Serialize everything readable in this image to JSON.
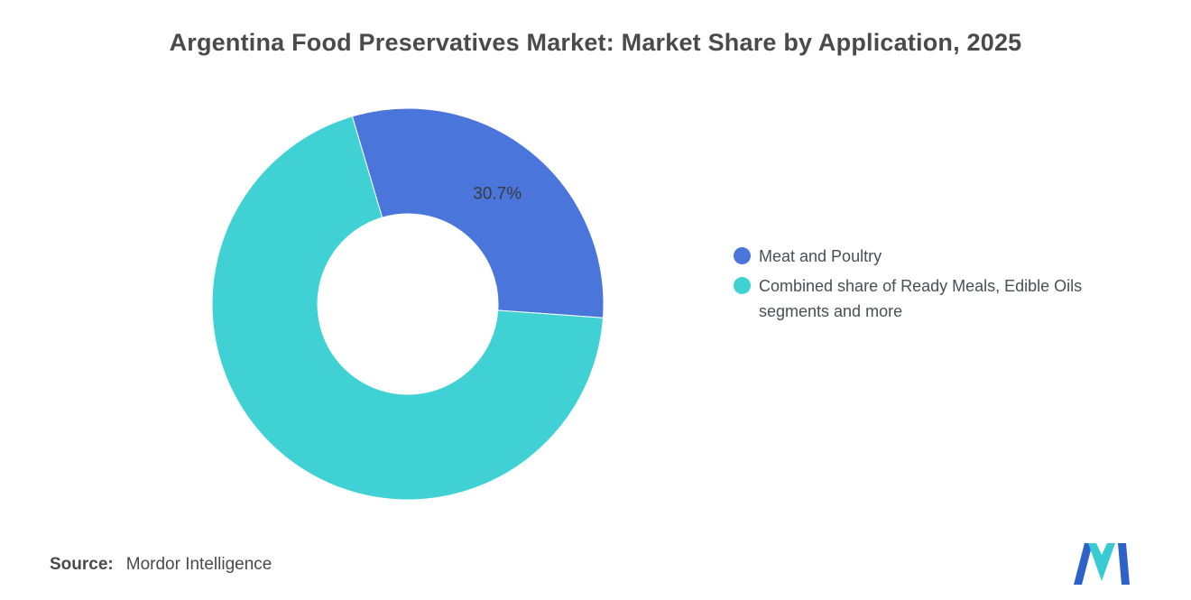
{
  "title": "Argentina Food Preservatives Market: Market Share by Application, 2025",
  "chart_data": {
    "type": "pie",
    "subtype": "donut",
    "title": "Argentina Food Preservatives Market: Market Share by Application, 2025",
    "start_angle": -16.5,
    "inner_radius_ratio": 0.46,
    "legend_position": "right",
    "slices": [
      {
        "label": "Meat and Poultry",
        "value": 30.7,
        "color": "#4A76DC",
        "data_label": "30.7%"
      },
      {
        "label": "Combined share of Ready Meals, Edible Oils segments and more",
        "value": 69.3,
        "color": "#40D1D5",
        "data_label": ""
      }
    ]
  },
  "data_label_color": "#3a3a3a",
  "source": {
    "label": "Source:",
    "value": "Mordor Intelligence"
  },
  "logo": {
    "name": "Mordor Intelligence logo",
    "blue": "#2E62C9",
    "teal": "#38CBD2"
  }
}
